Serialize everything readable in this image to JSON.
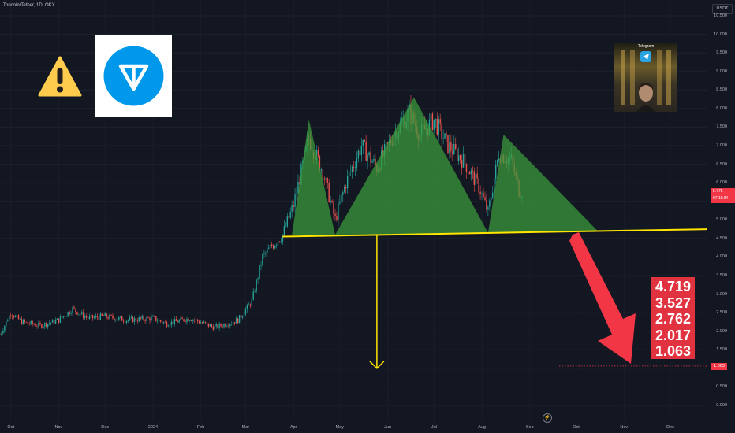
{
  "header": {
    "symbol_label": "Toncoin/Tether, 1D, OKX",
    "currency": "USDT"
  },
  "price_tags": {
    "current_price": "5.775",
    "countdown": "07:11:34",
    "target_price": "1.063"
  },
  "targets_box": {
    "values": [
      "4.719",
      "3.527",
      "2.762",
      "2.017",
      "1.063"
    ]
  },
  "photo": {
    "title": "Telegram"
  },
  "colors": {
    "background": "#131722",
    "bull": "#26a69a",
    "bear": "#ef5350",
    "pattern_fill": "#3b9b3b",
    "neckline": "#ffe500",
    "arrow": "#f23645",
    "warning": "#ffcc4d",
    "ton_blue": "#0098ea"
  },
  "icons": {
    "warning": "warning-triangle-icon",
    "logo": "toncoin-logo-icon",
    "flash": "lightning-icon"
  },
  "chart_data": {
    "type": "candlestick",
    "title": "",
    "xlabel": "",
    "ylabel": "",
    "y_axis_labels": [
      "0.000",
      "0.500",
      "1.000",
      "1.500",
      "2.000",
      "2.500",
      "3.000",
      "3.500",
      "4.000",
      "4.500",
      "5.000",
      "5.500",
      "6.000",
      "6.500",
      "7.000",
      "7.500",
      "8.000",
      "8.500",
      "9.000",
      "9.500",
      "10.000",
      "10.500"
    ],
    "x_axis_labels": [
      "Oct",
      "Nov",
      "Dec",
      "2024",
      "Feb",
      "Mar",
      "Apr",
      "May",
      "Jun",
      "Jul",
      "Aug",
      "Sep",
      "Oct",
      "Nov",
      "Dec"
    ],
    "ylim": [
      0,
      10.9
    ],
    "x_range": [
      "2023-09-24",
      "2024-12-25"
    ],
    "price_path": [
      [
        "2023-09-24",
        1.9
      ],
      [
        "2023-10-01",
        2.5
      ],
      [
        "2023-10-08",
        2.25
      ],
      [
        "2023-10-20",
        2.15
      ],
      [
        "2023-11-01",
        2.3
      ],
      [
        "2023-11-10",
        2.6
      ],
      [
        "2023-11-20",
        2.35
      ],
      [
        "2023-12-01",
        2.4
      ],
      [
        "2023-12-15",
        2.3
      ],
      [
        "2024-01-01",
        2.35
      ],
      [
        "2024-01-10",
        2.2
      ],
      [
        "2024-01-25",
        2.35
      ],
      [
        "2024-02-10",
        2.1
      ],
      [
        "2024-02-25",
        2.3
      ],
      [
        "2024-03-05",
        2.8
      ],
      [
        "2024-03-12",
        4.0
      ],
      [
        "2024-03-18",
        4.3
      ],
      [
        "2024-03-25",
        4.6
      ],
      [
        "2024-04-01",
        5.4
      ],
      [
        "2024-04-11",
        7.2
      ],
      [
        "2024-04-20",
        6.3
      ],
      [
        "2024-04-28",
        5.0
      ],
      [
        "2024-05-05",
        6.0
      ],
      [
        "2024-05-15",
        7.0
      ],
      [
        "2024-05-25",
        6.4
      ],
      [
        "2024-06-05",
        7.3
      ],
      [
        "2024-06-15",
        7.9
      ],
      [
        "2024-06-22",
        7.3
      ],
      [
        "2024-07-01",
        7.7
      ],
      [
        "2024-07-10",
        7.0
      ],
      [
        "2024-07-20",
        6.6
      ],
      [
        "2024-07-30",
        5.9
      ],
      [
        "2024-08-05",
        5.2
      ],
      [
        "2024-08-12",
        6.8
      ],
      [
        "2024-08-20",
        6.6
      ],
      [
        "2024-08-25",
        5.8
      ],
      [
        "2024-08-27",
        5.775
      ]
    ],
    "head_and_shoulders": {
      "left_shoulder": [
        [
          "2024-03-31",
          4.6
        ],
        [
          "2024-04-11",
          7.7
        ],
        [
          "2024-04-28",
          4.6
        ]
      ],
      "head": [
        [
          "2024-04-28",
          4.6
        ],
        [
          "2024-06-18",
          8.3
        ],
        [
          "2024-08-05",
          4.65
        ]
      ],
      "right_shoulder": [
        [
          "2024-08-05",
          4.65
        ],
        [
          "2024-08-15",
          7.3
        ],
        [
          "2024-10-15",
          4.7
        ]
      ]
    },
    "neckline": [
      [
        "2024-03-25",
        4.55
      ],
      [
        "2024-12-25",
        4.75
      ]
    ],
    "projection_arrow": {
      "from": [
        "2024-05-25",
        4.6
      ],
      "to": [
        "2024-05-25",
        1.0
      ]
    },
    "target_line": {
      "value": 1.063,
      "from": "2024-09-20"
    },
    "current_price_line": 5.775,
    "targets": [
      4.719,
      3.527,
      2.762,
      2.017,
      1.063
    ]
  }
}
